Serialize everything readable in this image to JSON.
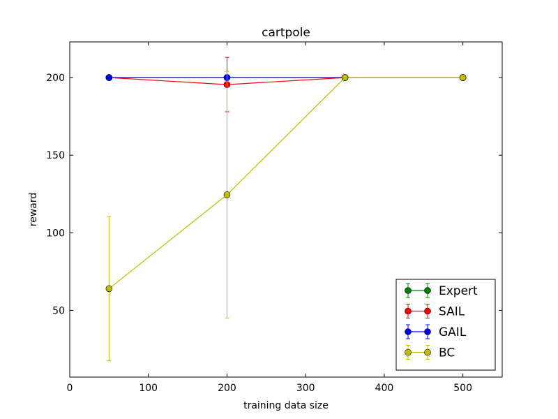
{
  "chart_data": {
    "type": "line",
    "title": "cartpole",
    "xlabel": "training data size",
    "ylabel": "reward",
    "xlim": [
      0,
      550
    ],
    "ylim": [
      7,
      223
    ],
    "xticks": [
      0,
      100,
      200,
      300,
      400,
      500
    ],
    "yticks": [
      50,
      100,
      150,
      200
    ],
    "grid": false,
    "legend_position": "lower-right",
    "series": [
      {
        "name": "Expert",
        "color": "#008000",
        "x": [
          50,
          200,
          350,
          500
        ],
        "y": [
          200,
          200,
          200,
          200
        ],
        "yerr": [
          0,
          0,
          0,
          0
        ]
      },
      {
        "name": "SAIL",
        "color": "#ff0000",
        "x": [
          50,
          200,
          350,
          500
        ],
        "y": [
          200,
          195.5,
          200,
          200
        ],
        "yerr": [
          0,
          17.5,
          0,
          0
        ]
      },
      {
        "name": "GAIL",
        "color": "#0000ff",
        "x": [
          50,
          200,
          350,
          500
        ],
        "y": [
          200,
          200,
          200,
          200
        ],
        "yerr": [
          0,
          0,
          0,
          0
        ]
      },
      {
        "name": "BC",
        "color": "#bfbf00",
        "x": [
          50,
          200,
          350,
          500
        ],
        "y": [
          64,
          124.5,
          200,
          200
        ],
        "yerr": [
          46.5,
          79.5,
          0,
          0
        ]
      }
    ]
  }
}
